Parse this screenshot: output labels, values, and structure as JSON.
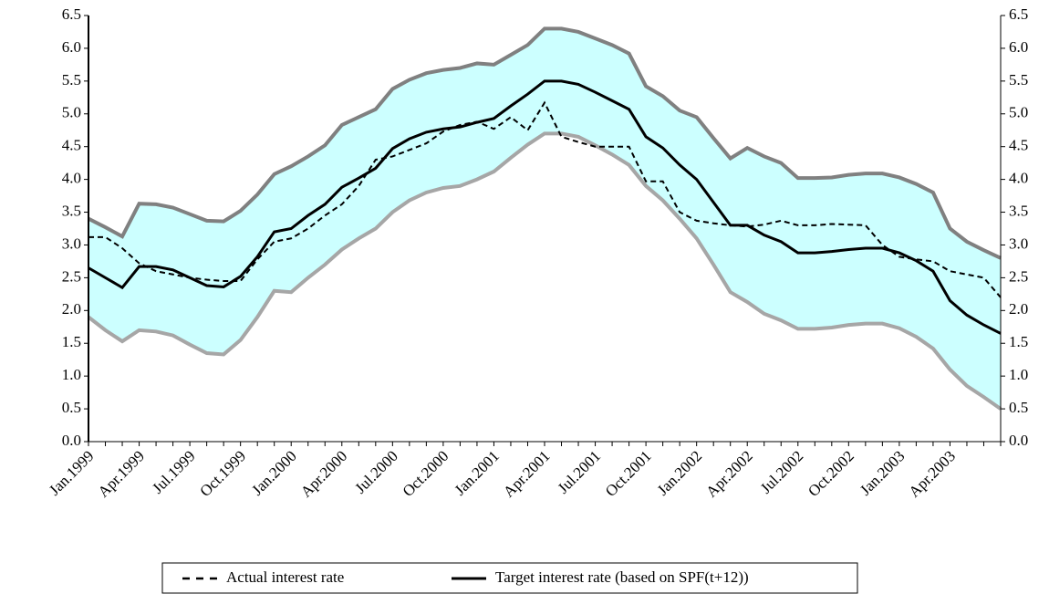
{
  "chart_data": {
    "type": "line",
    "categories": [
      "Jan.1999",
      null,
      null,
      "Apr.1999",
      null,
      null,
      "Jul.1999",
      null,
      null,
      "Oct.1999",
      null,
      null,
      "Jan.2000",
      null,
      null,
      "Apr.2000",
      null,
      null,
      "Jul.2000",
      null,
      null,
      "Oct.2000",
      null,
      null,
      "Jan.2001",
      null,
      null,
      "Apr.2001",
      null,
      null,
      "Jul.2001",
      null,
      null,
      "Oct.2001",
      null,
      null,
      "Jan.2002",
      null,
      null,
      "Apr.2002",
      null,
      null,
      "Jul.2002",
      null,
      null,
      "Oct.2002",
      null,
      null,
      "Jan.2003",
      null,
      null,
      "Apr.2003",
      null,
      null,
      null
    ],
    "band": {
      "fill": "#ccffff",
      "upper_color": "#808080",
      "lower_color": "#a6a6a6",
      "upper": [
        3.4,
        3.27,
        3.13,
        3.63,
        3.62,
        3.57,
        3.47,
        3.37,
        3.36,
        3.52,
        3.77,
        4.08,
        4.2,
        4.35,
        4.52,
        4.83,
        4.95,
        5.07,
        5.38,
        5.52,
        5.62,
        5.67,
        5.7,
        5.77,
        5.75,
        5.9,
        6.05,
        6.3,
        6.3,
        6.25,
        6.15,
        6.05,
        5.92,
        5.42,
        5.27,
        5.05,
        4.95,
        4.63,
        4.32,
        4.48,
        4.35,
        4.25,
        4.02,
        4.02,
        4.03,
        4.07,
        4.09,
        4.09,
        4.03,
        3.93,
        3.8,
        3.25,
        3.05,
        2.92,
        2.8
      ],
      "lower": [
        1.9,
        1.7,
        1.53,
        1.7,
        1.68,
        1.62,
        1.48,
        1.35,
        1.33,
        1.55,
        1.9,
        2.3,
        2.28,
        2.5,
        2.7,
        2.93,
        3.1,
        3.25,
        3.5,
        3.68,
        3.8,
        3.87,
        3.9,
        4.0,
        4.12,
        4.33,
        4.53,
        4.7,
        4.7,
        4.65,
        4.52,
        4.38,
        4.22,
        3.9,
        3.68,
        3.4,
        3.1,
        2.7,
        2.28,
        2.13,
        1.95,
        1.85,
        1.72,
        1.72,
        1.74,
        1.78,
        1.8,
        1.8,
        1.73,
        1.6,
        1.42,
        1.1,
        0.85,
        0.68,
        0.5
      ]
    },
    "series": [
      {
        "name": "Actual interest rate",
        "color": "#000000",
        "dashed": true,
        "values": [
          3.12,
          3.12,
          2.95,
          2.72,
          2.6,
          2.55,
          2.5,
          2.47,
          2.45,
          2.45,
          2.78,
          3.05,
          3.1,
          3.25,
          3.45,
          3.62,
          3.9,
          4.3,
          4.35,
          4.45,
          4.55,
          4.73,
          4.83,
          4.88,
          4.77,
          4.95,
          4.75,
          5.17,
          4.65,
          4.57,
          4.5,
          4.5,
          4.5,
          3.97,
          3.97,
          3.5,
          3.37,
          3.33,
          3.3,
          3.28,
          3.31,
          3.37,
          3.3,
          3.3,
          3.32,
          3.31,
          3.3,
          3.0,
          2.82,
          2.78,
          2.75,
          2.6,
          2.55,
          2.5,
          2.2
        ]
      },
      {
        "name": "Target interest rate (based on SPF(t+12))",
        "color": "#000000",
        "dashed": false,
        "values": [
          2.65,
          2.5,
          2.35,
          2.67,
          2.67,
          2.62,
          2.5,
          2.38,
          2.36,
          2.52,
          2.82,
          3.2,
          3.25,
          3.45,
          3.62,
          3.88,
          4.02,
          4.17,
          4.47,
          4.62,
          4.72,
          4.77,
          4.8,
          4.87,
          4.93,
          5.12,
          5.3,
          5.5,
          5.5,
          5.45,
          5.33,
          5.2,
          5.07,
          4.65,
          4.48,
          4.22,
          4.0,
          3.65,
          3.3,
          3.3,
          3.15,
          3.05,
          2.88,
          2.88,
          2.9,
          2.93,
          2.95,
          2.95,
          2.88,
          2.76,
          2.6,
          2.15,
          1.93,
          1.78,
          1.65
        ]
      }
    ],
    "ylim": [
      0,
      6.5
    ],
    "yticks": [
      {
        "value": 0,
        "label": "0.0"
      },
      {
        "value": 0.5,
        "label": "0.5"
      },
      {
        "value": 1,
        "label": "1.0"
      },
      {
        "value": 1.5,
        "label": "1.5"
      },
      {
        "value": 2,
        "label": "2.0"
      },
      {
        "value": 2.5,
        "label": "2.5"
      },
      {
        "value": 3,
        "label": "3.0"
      },
      {
        "value": 3.5,
        "label": "3.5"
      },
      {
        "value": 4,
        "label": "4.0"
      },
      {
        "value": 4.5,
        "label": "4.5"
      },
      {
        "value": 5,
        "label": "5.0"
      },
      {
        "value": 5.5,
        "label": "5.5"
      },
      {
        "value": 6,
        "label": "6.0"
      },
      {
        "value": 6.5,
        "label": "6.5"
      }
    ],
    "y2lim": [
      0,
      6.5
    ],
    "y2ticks": [
      {
        "value": 0,
        "label": "0.0"
      },
      {
        "value": 0.5,
        "label": "0.5"
      },
      {
        "value": 1,
        "label": "1.0"
      },
      {
        "value": 1.5,
        "label": "1.5"
      },
      {
        "value": 2,
        "label": "2.0"
      },
      {
        "value": 2.5,
        "label": "2.5"
      },
      {
        "value": 3,
        "label": "3.0"
      },
      {
        "value": 3.5,
        "label": "3.5"
      },
      {
        "value": 4,
        "label": "4.0"
      },
      {
        "value": 4.5,
        "label": "4.5"
      },
      {
        "value": 5,
        "label": "5.0"
      },
      {
        "value": 5.5,
        "label": "5.5"
      },
      {
        "value": 6,
        "label": "6.0"
      },
      {
        "value": 6.5,
        "label": "6.5"
      }
    ],
    "legend": "bottom"
  }
}
